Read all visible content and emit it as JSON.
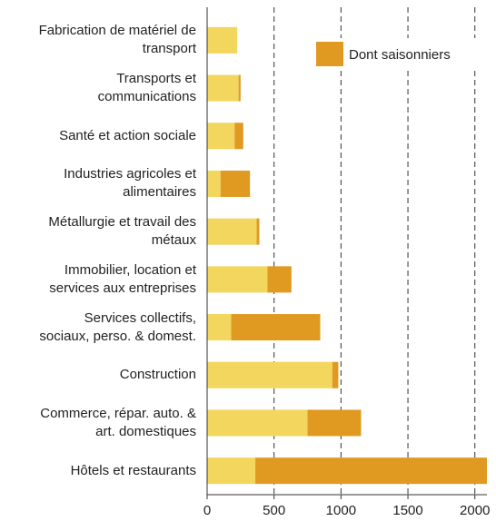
{
  "chart_data": {
    "type": "stacked_barh",
    "categories": [
      "Fabrication de matériel de\ntransport",
      "Transports et\ncommunications",
      "Santé et action sociale",
      "Industries agricoles et\nalimentaires",
      "Métallurgie et travail des\nmétaux",
      "Immobilier, location et\nservices aux entreprises",
      "Services collectifs,\nsociaux, perso. & domest.",
      "Construction",
      "Commerce, répar. auto. &\nart. domestiques",
      "Hôtels et restaurants"
    ],
    "series": [
      {
        "color": "#f2d65e",
        "values": [
          225,
          235,
          205,
          100,
          370,
          450,
          180,
          935,
          750,
          360
        ]
      },
      {
        "name": "Dont saisonniers",
        "color": "#e09a22",
        "values": [
          0,
          15,
          65,
          220,
          20,
          180,
          665,
          45,
          400,
          1730
        ]
      }
    ],
    "xlim": [
      0,
      2090
    ],
    "xticks": [
      0,
      500,
      1000,
      1500,
      2000
    ],
    "grid": true,
    "legend": "upper right"
  }
}
